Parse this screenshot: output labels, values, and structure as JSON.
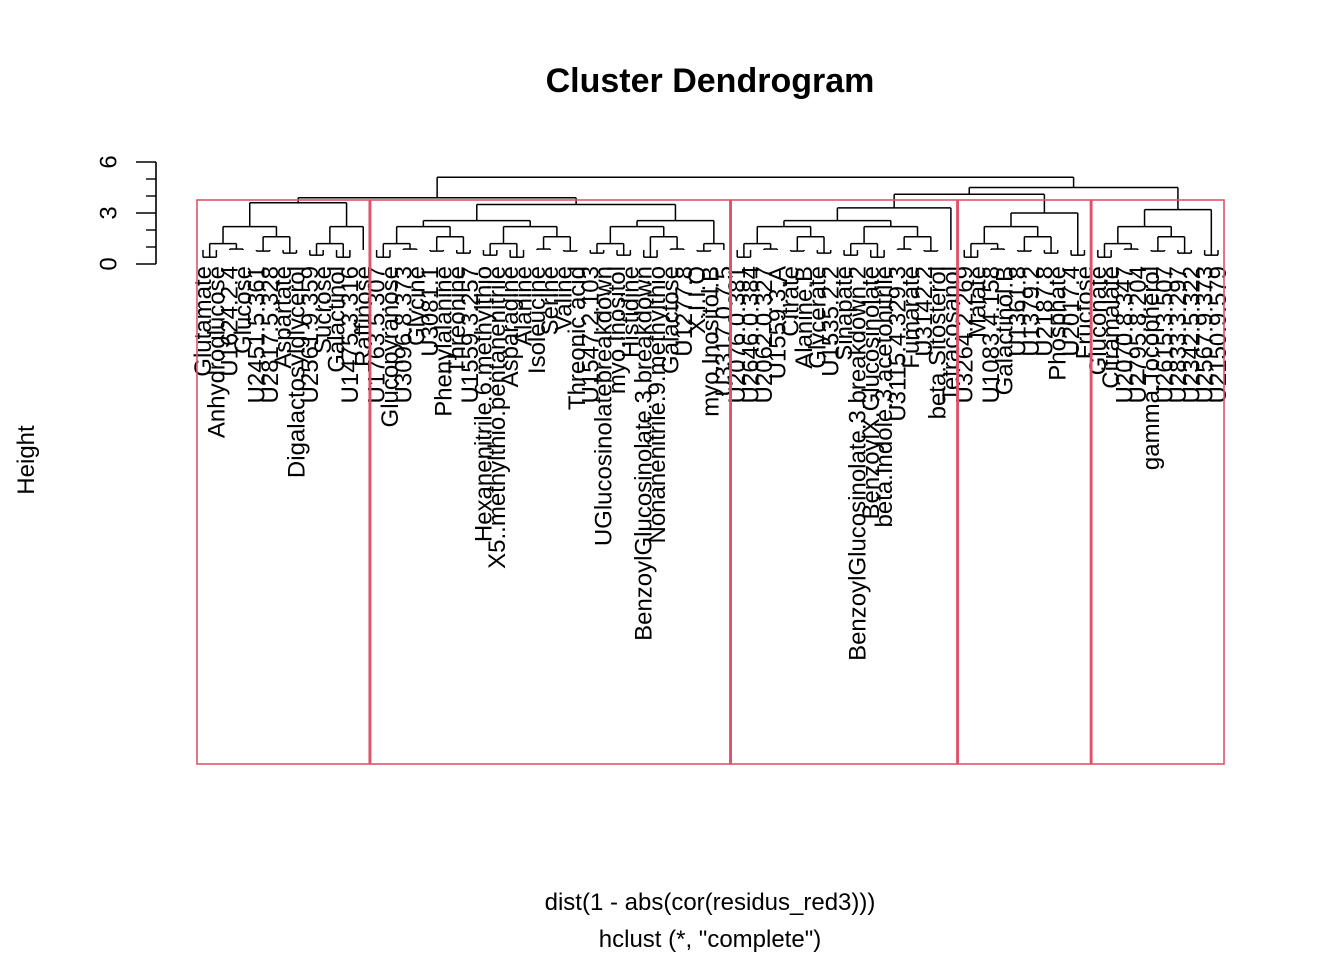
{
  "chart_data": {
    "type": "dendrogram",
    "title": "Cluster Dendrogram",
    "ylabel": "Height",
    "xlabel": "dist(1 - abs(cor(residus_red3)))",
    "sublabel": "hclust (*, \"complete\")",
    "y_ticks": [
      "0",
      "3",
      "6"
    ],
    "ylim": [
      0,
      6
    ],
    "root_height": 5.1,
    "highlight_color": "#DF536B",
    "clusters": [
      {
        "merge_height": 3.6,
        "leaves": [
          "Glutamate",
          "Anhydroglucose",
          "U1624.2.4",
          "Glucose",
          "U2451.5.361",
          "U2817.5.328",
          "Aspartate",
          "Digalactosylglycerol",
          "U2561.9.359",
          "Sucrose",
          "Galactinol",
          "U1475.3.316",
          "Raffinose"
        ]
      },
      {
        "merge_height": 3.5,
        "leaves": [
          "U1763.5.307",
          "Glucopyranose",
          "U3096.8.373",
          "Glycine",
          "U3081.1",
          "Phenylalanine",
          "Threonine",
          "U1559.3.257",
          "Hexanenitrile.6.methylthio",
          "X5..methylthio.pentanenitrile",
          "Asparagine",
          "Alanine",
          "Isoleucine",
          "Serine",
          "Valine",
          "Threonic acid",
          "U1547.2.103",
          "UGlucosinolatebreakdown",
          "myo.Inositol",
          "Histidine",
          "BenzoylGlucosinolate.3.breakdown",
          "Nonanenitrile.9.methylthio",
          "Galactose",
          "U1277.8",
          "X.I.I.O",
          "myo.Inositol.B",
          "U3317.0.7.5"
        ]
      },
      {
        "merge_height": 3.3,
        "leaves": [
          "U2076.0.381",
          "U2646.0.384",
          "U2062.0.327",
          "U1559.3.A",
          "Citrate",
          "Alanine.B",
          "Glycerate",
          "U1535.2.2",
          "Sinapate",
          "BenzoylGlucosinolate.3.breakdown.2",
          "BenzoylX.Glucosinolate",
          "beta.Indole.3.acetonitrile",
          "U3115.4.329.3",
          "Fumarate",
          "U3142.2",
          "beta.Sitosterol",
          "Tetracosanol"
        ]
      },
      {
        "merge_height": 3.0,
        "leaves": [
          "U3264.2.269",
          "Malate",
          "U1083.4.158",
          "Galactinol.B",
          "U1361.8",
          "U1379.2",
          "U2187.8",
          "Phosphate",
          "U2017.4",
          "Fructose"
        ]
      },
      {
        "merge_height": 3.2,
        "leaves": [
          "Gluconate",
          "Citramalate",
          "U2070.8.347",
          "U2795.8.204",
          "gamma.Tocopherol",
          "U2615.3.507",
          "U2833.3.297",
          "U2342.5.322",
          "U2567.9.373",
          "U2150.9.579"
        ]
      }
    ]
  }
}
